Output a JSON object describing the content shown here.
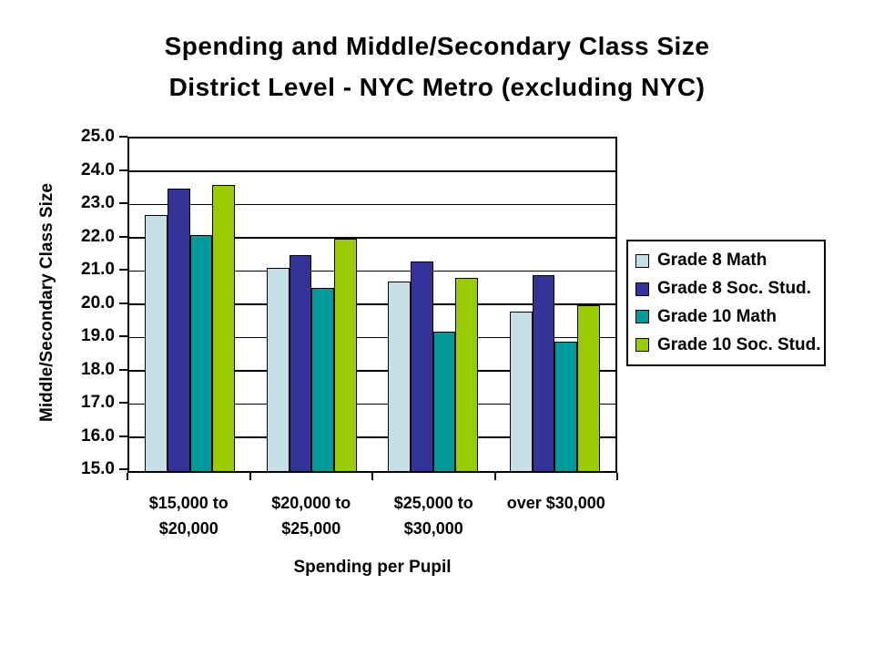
{
  "title": {
    "line1": "Spending and Middle/Secondary Class Size",
    "line2": "District Level - NYC Metro (excluding NYC)"
  },
  "chart_data": {
    "type": "bar",
    "title": "Spending and Middle/Secondary Class Size District Level - NYC Metro (excluding NYC)",
    "categories": [
      "$15,000 to $20,000",
      "$20,000 to $25,000",
      "$25,000 to $30,000",
      "over $30,000"
    ],
    "categories_wrapped": [
      [
        "$15,000 to",
        "$20,000"
      ],
      [
        "$20,000 to",
        "$25,000"
      ],
      [
        "$25,000 to",
        "$30,000"
      ],
      [
        "over $30,000"
      ]
    ],
    "series": [
      {
        "name": "Grade 8 Math",
        "color": "#C5DFE6",
        "values": [
          22.7,
          21.1,
          20.7,
          19.8
        ]
      },
      {
        "name": "Grade 8 Soc. Stud.",
        "color": "#333399",
        "values": [
          23.5,
          21.5,
          21.3,
          20.9
        ]
      },
      {
        "name": "Grade 10 Math",
        "color": "#009999",
        "values": [
          22.1,
          20.5,
          19.2,
          18.9
        ]
      },
      {
        "name": "Grade 10 Soc. Stud.",
        "color": "#99CC00",
        "values": [
          23.6,
          22.0,
          20.8,
          20.0
        ]
      }
    ],
    "xlabel": "Spending per Pupil",
    "ylabel": "Middle/Secondary Class Size",
    "ylim": [
      15.0,
      25.0
    ],
    "ytick_step": 1.0,
    "ytick_labels": [
      "25.0",
      "24.0",
      "23.0",
      "22.0",
      "21.0",
      "20.0",
      "19.0",
      "18.0",
      "17.0",
      "16.0",
      "15.0"
    ],
    "grid": true,
    "legend_position": "right",
    "axis_color": "#000000",
    "text_color": "#000000",
    "background": "#FFFFFF"
  }
}
